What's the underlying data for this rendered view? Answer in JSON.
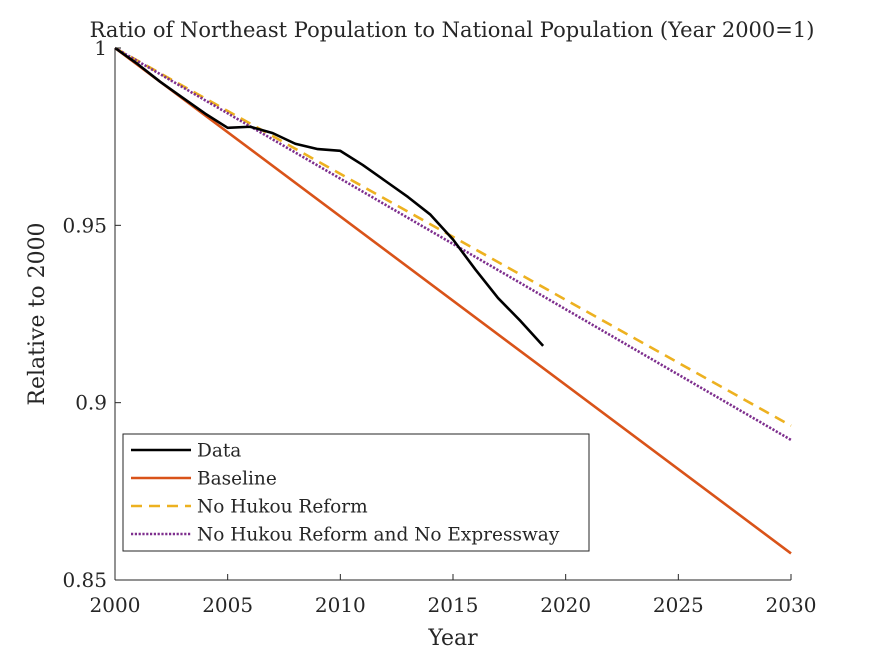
{
  "chart_data": {
    "type": "line",
    "title": "Ratio of Northeast Population to National Population (Year 2000=1)",
    "xlabel": "Year",
    "ylabel": "Relative to 2000",
    "xlim": [
      2000,
      2030
    ],
    "ylim": [
      0.85,
      1.0
    ],
    "xticks": [
      2000,
      2005,
      2010,
      2015,
      2020,
      2025,
      2030
    ],
    "yticks": [
      0.85,
      0.9,
      0.95,
      1
    ],
    "xtick_labels": [
      "2000",
      "2005",
      "2010",
      "2015",
      "2020",
      "2025",
      "2030"
    ],
    "ytick_labels": [
      "0.85",
      "0.9",
      "0.95",
      "1"
    ],
    "grid": false,
    "legend_position": "bottom-left",
    "series": [
      {
        "name": "Data",
        "color": "#000000",
        "style": "solid",
        "x": [
          2000,
          2001,
          2002,
          2003,
          2004,
          2005,
          2006,
          2007,
          2008,
          2009,
          2010,
          2011,
          2012,
          2013,
          2014,
          2015,
          2016,
          2017,
          2018,
          2019
        ],
        "y": [
          1.0,
          0.9955,
          0.9905,
          0.986,
          0.9815,
          0.9775,
          0.9778,
          0.976,
          0.973,
          0.9715,
          0.971,
          0.967,
          0.9625,
          0.958,
          0.953,
          0.946,
          0.9375,
          0.9295,
          0.923,
          0.916
        ]
      },
      {
        "name": "Baseline",
        "color": "#D95319",
        "style": "solid",
        "x": [
          2000,
          2030
        ],
        "y": [
          1.0,
          0.8575
        ]
      },
      {
        "name": "No Hukou Reform",
        "color": "#EDB120",
        "style": "dashed",
        "x": [
          2000,
          2030
        ],
        "y": [
          1.0,
          0.8935
        ]
      },
      {
        "name": "No Hukou Reform and No Expressway",
        "color": "#7E2F8E",
        "style": "dotted",
        "x": [
          2000,
          2030
        ],
        "y": [
          1.0,
          0.8895
        ]
      }
    ]
  }
}
